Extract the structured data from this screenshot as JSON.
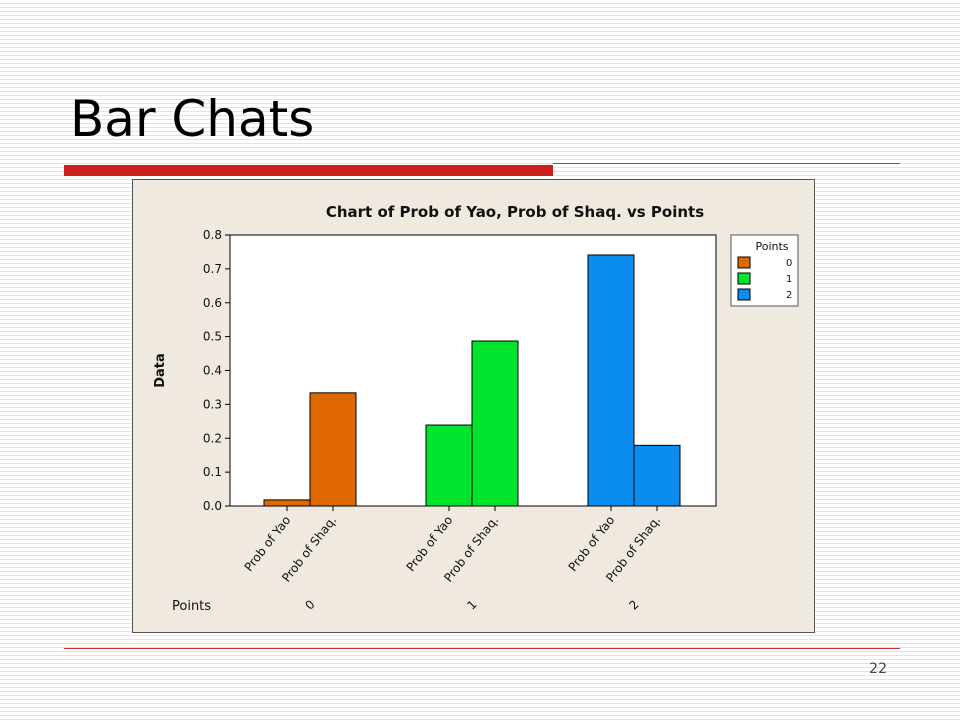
{
  "slide": {
    "title": "Bar Chats",
    "page_number": "22",
    "accent_color": "#cc1f1f",
    "rule_color": "#c0392b"
  },
  "chart_data": {
    "type": "bar",
    "title": "Chart of Prob of Yao, Prob of Shaq. vs Points",
    "ylabel": "Data",
    "xlabel": "Points",
    "ylim": [
      0,
      0.8
    ],
    "yticks": [
      0.0,
      0.1,
      0.2,
      0.3,
      0.4,
      0.5,
      0.6,
      0.7,
      0.8
    ],
    "grid": false,
    "background": "#efe9df",
    "groups": [
      {
        "label": "0",
        "color": "#e06800",
        "bars": [
          {
            "label": "Prob of Yao",
            "value": 0.018
          },
          {
            "label": "Prob of Shaq.",
            "value": 0.334
          }
        ]
      },
      {
        "label": "1",
        "color": "#00e62e",
        "bars": [
          {
            "label": "Prob of Yao",
            "value": 0.239
          },
          {
            "label": "Prob of Shaq.",
            "value": 0.487
          }
        ]
      },
      {
        "label": "2",
        "color": "#0a8cf0",
        "bars": [
          {
            "label": "Prob of Yao",
            "value": 0.741
          },
          {
            "label": "Prob of Shaq.",
            "value": 0.179
          }
        ]
      }
    ],
    "legend": {
      "title": "Points",
      "position": "right",
      "entries": [
        {
          "label": "0",
          "color": "#e06800"
        },
        {
          "label": "1",
          "color": "#00e62e"
        },
        {
          "label": "2",
          "color": "#0a8cf0"
        }
      ]
    }
  }
}
